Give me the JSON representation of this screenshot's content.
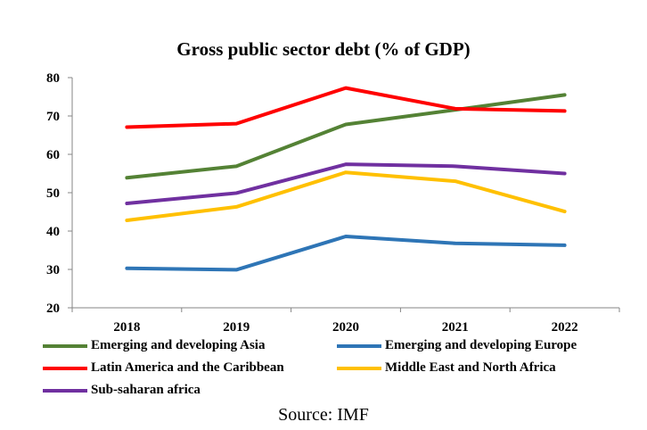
{
  "chart_data": {
    "type": "line",
    "title": "Gross public sector debt (% of GDP)",
    "xlabel": "",
    "ylabel": "",
    "categories": [
      "2018",
      "2019",
      "2020",
      "2021",
      "2022"
    ],
    "ylim": [
      20,
      80
    ],
    "yticks": [
      "20",
      "30",
      "40",
      "50",
      "60",
      "70",
      "80"
    ],
    "grid": false,
    "legend_position": "bottom",
    "series": [
      {
        "name": "Emerging and developing Asia",
        "color": "#548235",
        "values": [
          53.9,
          56.9,
          67.8,
          71.6,
          75.5
        ]
      },
      {
        "name": "Emerging and developing Europe",
        "color": "#2e75b6",
        "values": [
          30.3,
          29.9,
          38.6,
          36.8,
          36.3
        ]
      },
      {
        "name": "Latin America and the Caribbean",
        "color": "#ff0000",
        "values": [
          67.1,
          68.0,
          77.3,
          71.9,
          71.3
        ]
      },
      {
        "name": "Middle East and North Africa",
        "color": "#ffc000",
        "values": [
          42.8,
          46.3,
          55.3,
          53.0,
          45.1
        ]
      },
      {
        "name": "Sub-saharan africa",
        "color": "#7030a0",
        "values": [
          47.2,
          49.9,
          57.4,
          56.9,
          55.0
        ]
      }
    ],
    "source": "Source: IMF"
  }
}
